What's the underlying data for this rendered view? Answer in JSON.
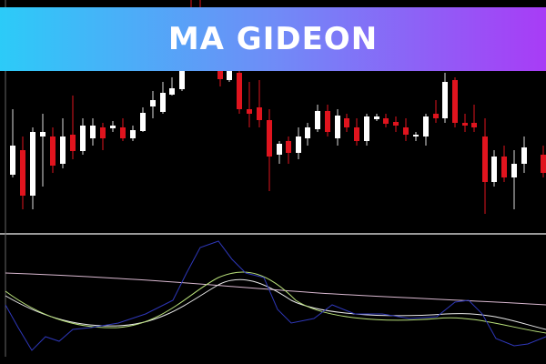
{
  "banner": {
    "title": "MA GIDEON"
  }
}
